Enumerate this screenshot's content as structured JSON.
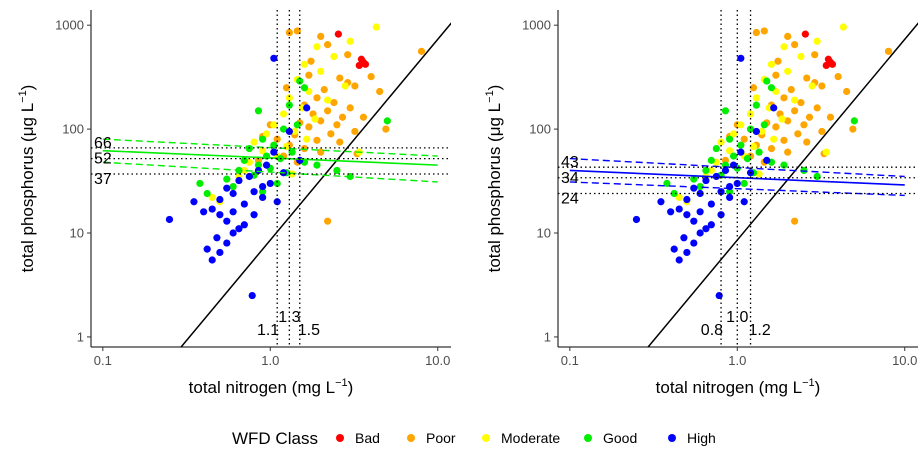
{
  "legend": {
    "title": "WFD Class",
    "items": [
      {
        "label": "Bad",
        "color": "#ff0000"
      },
      {
        "label": "Poor",
        "color": "#ffa500"
      },
      {
        "label": "Moderate",
        "color": "#ffff00"
      },
      {
        "label": "Good",
        "color": "#00ee00"
      },
      {
        "label": "High",
        "color": "#0000ff"
      }
    ]
  },
  "chart_data": [
    {
      "type": "scatter",
      "xlabel": "total nitrogen (mg L",
      "xlabel_sup": "−1",
      "xlabel_close": ")",
      "ylabel": "total phosphorus (μg L",
      "ylabel_sup": "−1",
      "ylabel_close": ")",
      "x_scale": "log",
      "y_scale": "log",
      "xlim": [
        0.085,
        12
      ],
      "ylim": [
        0.8,
        1400
      ],
      "x_ticks": [
        {
          "v": 0.1,
          "label": "0.1"
        },
        {
          "v": 1,
          "label": "1.0"
        },
        {
          "v": 10,
          "label": "10.0"
        }
      ],
      "y_ticks": [
        {
          "v": 1,
          "label": "1"
        },
        {
          "v": 10,
          "label": "10"
        },
        {
          "v": 100,
          "label": "100"
        },
        {
          "v": 1000,
          "label": "1000"
        }
      ],
      "regression": {
        "color": "#00ee00",
        "x0": 0.1,
        "x1": 10,
        "fit": [
          62,
          45
        ],
        "ci_upper": [
          80,
          55
        ],
        "ci_lower": [
          48,
          31
        ]
      },
      "tp_thresholds": [
        {
          "value": 66,
          "label": "66"
        },
        {
          "value": 52,
          "label": "52"
        },
        {
          "value": 37,
          "label": "37"
        }
      ],
      "tn_thresholds": [
        {
          "value": 1.1,
          "label": "1.1"
        },
        {
          "value": 1.3,
          "label": "1.3"
        },
        {
          "value": 1.5,
          "label": "1.5"
        }
      ],
      "reference_line": {
        "from": [
          0.1,
          0.1
        ],
        "to": [
          14,
          1400
        ]
      },
      "points": [
        {
          "tn": 2.55,
          "tp": 820,
          "class": "Bad"
        },
        {
          "tn": 3.5,
          "tp": 470,
          "class": "Bad"
        },
        {
          "tn": 3.7,
          "tp": 420,
          "class": "Bad"
        },
        {
          "tn": 3.4,
          "tp": 410,
          "class": "Bad"
        },
        {
          "tn": 3.6,
          "tp": 440,
          "class": "Bad"
        },
        {
          "tn": 1.3,
          "tp": 850,
          "class": "Poor"
        },
        {
          "tn": 1.45,
          "tp": 880,
          "class": "Poor"
        },
        {
          "tn": 2.0,
          "tp": 780,
          "class": "Poor"
        },
        {
          "tn": 2.2,
          "tp": 650,
          "class": "Poor"
        },
        {
          "tn": 8.0,
          "tp": 560,
          "class": "Poor"
        },
        {
          "tn": 1.7,
          "tp": 330,
          "class": "Poor"
        },
        {
          "tn": 2.6,
          "tp": 310,
          "class": "Poor"
        },
        {
          "tn": 2.9,
          "tp": 280,
          "class": "Poor"
        },
        {
          "tn": 3.2,
          "tp": 260,
          "class": "Poor"
        },
        {
          "tn": 2.1,
          "tp": 240,
          "class": "Poor"
        },
        {
          "tn": 4.5,
          "tp": 230,
          "class": "Poor"
        },
        {
          "tn": 1.9,
          "tp": 200,
          "class": "Poor"
        },
        {
          "tn": 2.4,
          "tp": 180,
          "class": "Poor"
        },
        {
          "tn": 1.6,
          "tp": 170,
          "class": "Poor"
        },
        {
          "tn": 3.0,
          "tp": 160,
          "class": "Poor"
        },
        {
          "tn": 2.2,
          "tp": 150,
          "class": "Poor"
        },
        {
          "tn": 1.8,
          "tp": 140,
          "class": "Poor"
        },
        {
          "tn": 2.7,
          "tp": 130,
          "class": "Poor"
        },
        {
          "tn": 3.6,
          "tp": 130,
          "class": "Poor"
        },
        {
          "tn": 2.0,
          "tp": 120,
          "class": "Poor"
        },
        {
          "tn": 1.5,
          "tp": 115,
          "class": "Poor"
        },
        {
          "tn": 2.5,
          "tp": 110,
          "class": "Poor"
        },
        {
          "tn": 1.7,
          "tp": 105,
          "class": "Poor"
        },
        {
          "tn": 4.9,
          "tp": 100,
          "class": "Poor"
        },
        {
          "tn": 3.2,
          "tp": 95,
          "class": "Poor"
        },
        {
          "tn": 2.3,
          "tp": 90,
          "class": "Poor"
        },
        {
          "tn": 1.4,
          "tp": 88,
          "class": "Poor"
        },
        {
          "tn": 0.9,
          "tp": 85,
          "class": "Poor"
        },
        {
          "tn": 1.1,
          "tp": 80,
          "class": "Poor"
        },
        {
          "tn": 1.9,
          "tp": 78,
          "class": "Poor"
        },
        {
          "tn": 2.6,
          "tp": 75,
          "class": "Poor"
        },
        {
          "tn": 1.3,
          "tp": 70,
          "class": "Poor"
        },
        {
          "tn": 1.6,
          "tp": 65,
          "class": "Poor"
        },
        {
          "tn": 2.0,
          "tp": 60,
          "class": "Poor"
        },
        {
          "tn": 1.2,
          "tp": 55,
          "class": "Poor"
        },
        {
          "tn": 0.85,
          "tp": 50,
          "class": "Poor"
        },
        {
          "tn": 3.3,
          "tp": 58,
          "class": "Poor"
        },
        {
          "tn": 1.45,
          "tp": 48,
          "class": "Poor"
        },
        {
          "tn": 2.2,
          "tp": 13,
          "class": "Poor"
        },
        {
          "tn": 1.75,
          "tp": 450,
          "class": "Poor"
        },
        {
          "tn": 2.9,
          "tp": 520,
          "class": "Poor"
        },
        {
          "tn": 4.0,
          "tp": 320,
          "class": "Poor"
        },
        {
          "tn": 1.25,
          "tp": 250,
          "class": "Poor"
        },
        {
          "tn": 1.0,
          "tp": 110,
          "class": "Poor"
        },
        {
          "tn": 4.3,
          "tp": 960,
          "class": "Moderate"
        },
        {
          "tn": 3.0,
          "tp": 700,
          "class": "Moderate"
        },
        {
          "tn": 1.9,
          "tp": 620,
          "class": "Moderate"
        },
        {
          "tn": 2.4,
          "tp": 500,
          "class": "Moderate"
        },
        {
          "tn": 1.6,
          "tp": 420,
          "class": "Moderate"
        },
        {
          "tn": 2.0,
          "tp": 360,
          "class": "Moderate"
        },
        {
          "tn": 1.45,
          "tp": 300,
          "class": "Moderate"
        },
        {
          "tn": 2.8,
          "tp": 260,
          "class": "Moderate"
        },
        {
          "tn": 1.7,
          "tp": 230,
          "class": "Moderate"
        },
        {
          "tn": 1.3,
          "tp": 200,
          "class": "Moderate"
        },
        {
          "tn": 2.2,
          "tp": 190,
          "class": "Moderate"
        },
        {
          "tn": 1.55,
          "tp": 160,
          "class": "Moderate"
        },
        {
          "tn": 1.2,
          "tp": 140,
          "class": "Moderate"
        },
        {
          "tn": 1.85,
          "tp": 125,
          "class": "Moderate"
        },
        {
          "tn": 1.05,
          "tp": 110,
          "class": "Moderate"
        },
        {
          "tn": 1.4,
          "tp": 95,
          "class": "Moderate"
        },
        {
          "tn": 0.95,
          "tp": 90,
          "class": "Moderate"
        },
        {
          "tn": 1.65,
          "tp": 80,
          "class": "Moderate"
        },
        {
          "tn": 0.8,
          "tp": 75,
          "class": "Moderate"
        },
        {
          "tn": 1.25,
          "tp": 68,
          "class": "Moderate"
        },
        {
          "tn": 0.9,
          "tp": 62,
          "class": "Moderate"
        },
        {
          "tn": 1.1,
          "tp": 55,
          "class": "Moderate"
        },
        {
          "tn": 0.75,
          "tp": 48,
          "class": "Moderate"
        },
        {
          "tn": 0.7,
          "tp": 40,
          "class": "Moderate"
        },
        {
          "tn": 0.65,
          "tp": 35,
          "class": "Moderate"
        },
        {
          "tn": 0.95,
          "tp": 45,
          "class": "Moderate"
        },
        {
          "tn": 3.4,
          "tp": 60,
          "class": "Moderate"
        },
        {
          "tn": 0.45,
          "tp": 22,
          "class": "Moderate"
        },
        {
          "tn": 0.5,
          "tp": 20,
          "class": "Moderate"
        },
        {
          "tn": 1.35,
          "tp": 37,
          "class": "Moderate"
        },
        {
          "tn": 1.5,
          "tp": 290,
          "class": "Good"
        },
        {
          "tn": 1.6,
          "tp": 250,
          "class": "Good"
        },
        {
          "tn": 1.3,
          "tp": 170,
          "class": "Good"
        },
        {
          "tn": 0.85,
          "tp": 150,
          "class": "Good"
        },
        {
          "tn": 5.0,
          "tp": 120,
          "class": "Good"
        },
        {
          "tn": 1.2,
          "tp": 100,
          "class": "Good"
        },
        {
          "tn": 0.9,
          "tp": 80,
          "class": "Good"
        },
        {
          "tn": 1.05,
          "tp": 70,
          "class": "Good"
        },
        {
          "tn": 0.75,
          "tp": 65,
          "class": "Good"
        },
        {
          "tn": 1.35,
          "tp": 60,
          "class": "Good"
        },
        {
          "tn": 0.95,
          "tp": 55,
          "class": "Good"
        },
        {
          "tn": 1.15,
          "tp": 52,
          "class": "Good"
        },
        {
          "tn": 0.7,
          "tp": 50,
          "class": "Good"
        },
        {
          "tn": 1.6,
          "tp": 48,
          "class": "Good"
        },
        {
          "tn": 0.85,
          "tp": 45,
          "class": "Good"
        },
        {
          "tn": 1.0,
          "tp": 42,
          "class": "Good"
        },
        {
          "tn": 0.65,
          "tp": 40,
          "class": "Good"
        },
        {
          "tn": 1.25,
          "tp": 38,
          "class": "Good"
        },
        {
          "tn": 0.8,
          "tp": 36,
          "class": "Good"
        },
        {
          "tn": 1.9,
          "tp": 45,
          "class": "Good"
        },
        {
          "tn": 0.55,
          "tp": 33,
          "class": "Good"
        },
        {
          "tn": 1.1,
          "tp": 30,
          "class": "Good"
        },
        {
          "tn": 0.6,
          "tp": 28,
          "class": "Good"
        },
        {
          "tn": 0.42,
          "tp": 24,
          "class": "Good"
        },
        {
          "tn": 0.38,
          "tp": 30,
          "class": "Good"
        },
        {
          "tn": 0.9,
          "tp": 25,
          "class": "Good"
        },
        {
          "tn": 2.5,
          "tp": 40,
          "class": "Good"
        },
        {
          "tn": 3.0,
          "tp": 35,
          "class": "Good"
        },
        {
          "tn": 1.45,
          "tp": 110,
          "class": "Good"
        },
        {
          "tn": 1.05,
          "tp": 480,
          "class": "High"
        },
        {
          "tn": 1.65,
          "tp": 160,
          "class": "High"
        },
        {
          "tn": 1.3,
          "tp": 95,
          "class": "High"
        },
        {
          "tn": 1.05,
          "tp": 60,
          "class": "High"
        },
        {
          "tn": 0.95,
          "tp": 45,
          "class": "High"
        },
        {
          "tn": 0.85,
          "tp": 40,
          "class": "High"
        },
        {
          "tn": 1.2,
          "tp": 38,
          "class": "High"
        },
        {
          "tn": 0.75,
          "tp": 35,
          "class": "High"
        },
        {
          "tn": 0.65,
          "tp": 32,
          "class": "High"
        },
        {
          "tn": 1.0,
          "tp": 30,
          "class": "High"
        },
        {
          "tn": 0.55,
          "tp": 27,
          "class": "High"
        },
        {
          "tn": 0.8,
          "tp": 25,
          "class": "High"
        },
        {
          "tn": 0.6,
          "tp": 24,
          "class": "High"
        },
        {
          "tn": 0.9,
          "tp": 22,
          "class": "High"
        },
        {
          "tn": 0.5,
          "tp": 21,
          "class": "High"
        },
        {
          "tn": 1.1,
          "tp": 20,
          "class": "High"
        },
        {
          "tn": 0.7,
          "tp": 19,
          "class": "High"
        },
        {
          "tn": 0.45,
          "tp": 17,
          "class": "High"
        },
        {
          "tn": 0.6,
          "tp": 16,
          "class": "High"
        },
        {
          "tn": 0.5,
          "tp": 15,
          "class": "High"
        },
        {
          "tn": 0.8,
          "tp": 15,
          "class": "High"
        },
        {
          "tn": 0.4,
          "tp": 16,
          "class": "High"
        },
        {
          "tn": 0.55,
          "tp": 13,
          "class": "High"
        },
        {
          "tn": 0.7,
          "tp": 12,
          "class": "High"
        },
        {
          "tn": 0.25,
          "tp": 13.5,
          "class": "High"
        },
        {
          "tn": 0.65,
          "tp": 11,
          "class": "High"
        },
        {
          "tn": 0.48,
          "tp": 9,
          "class": "High"
        },
        {
          "tn": 0.55,
          "tp": 8,
          "class": "High"
        },
        {
          "tn": 0.42,
          "tp": 7,
          "class": "High"
        },
        {
          "tn": 0.5,
          "tp": 6.5,
          "class": "High"
        },
        {
          "tn": 0.45,
          "tp": 5.5,
          "class": "High"
        },
        {
          "tn": 0.78,
          "tp": 2.5,
          "class": "High"
        },
        {
          "tn": 0.6,
          "tp": 10,
          "class": "High"
        },
        {
          "tn": 0.9,
          "tp": 28,
          "class": "High"
        },
        {
          "tn": 1.5,
          "tp": 50,
          "class": "High"
        },
        {
          "tn": 0.35,
          "tp": 20,
          "class": "High"
        }
      ]
    },
    {
      "type": "scatter",
      "xlabel": "total nitrogen (mg L",
      "xlabel_sup": "−1",
      "xlabel_close": ")",
      "ylabel": "total phosphorus (μg L",
      "ylabel_sup": "−1",
      "ylabel_close": ")",
      "x_scale": "log",
      "y_scale": "log",
      "xlim": [
        0.085,
        12
      ],
      "ylim": [
        0.8,
        1400
      ],
      "x_ticks": [
        {
          "v": 0.1,
          "label": "0.1"
        },
        {
          "v": 1,
          "label": "1.0"
        },
        {
          "v": 10,
          "label": "10.0"
        }
      ],
      "y_ticks": [
        {
          "v": 1,
          "label": "1"
        },
        {
          "v": 10,
          "label": "10"
        },
        {
          "v": 100,
          "label": "100"
        },
        {
          "v": 1000,
          "label": "1000"
        }
      ],
      "regression": {
        "color": "#0000ff",
        "x0": 0.1,
        "x1": 10,
        "fit": [
          40,
          29
        ],
        "ci_upper": [
          52,
          35
        ],
        "ci_lower": [
          31,
          23
        ]
      },
      "tp_thresholds": [
        {
          "value": 43,
          "label": "43"
        },
        {
          "value": 34,
          "label": "34"
        },
        {
          "value": 24,
          "label": "24"
        }
      ],
      "tn_thresholds": [
        {
          "value": 0.8,
          "label": "0.8"
        },
        {
          "value": 1.0,
          "label": "1.0"
        },
        {
          "value": 1.2,
          "label": "1.2"
        }
      ],
      "reference_line": {
        "from": [
          0.1,
          0.1
        ],
        "to": [
          14,
          1400
        ]
      },
      "points_same_as_panel": 1
    }
  ]
}
